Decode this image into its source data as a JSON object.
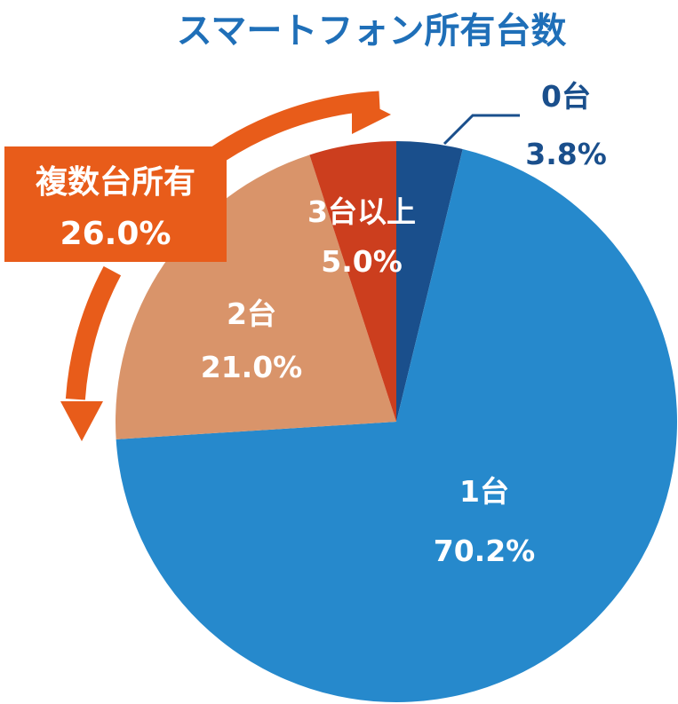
{
  "chart_data": {
    "type": "pie",
    "title": "スマートフォン所有台数",
    "slices": [
      {
        "category": "0台",
        "value": 3.8,
        "value_label": "3.8%",
        "color": "#1a4f8c"
      },
      {
        "category": "1台",
        "value": 70.2,
        "value_label": "70.2%",
        "color": "#2689cc"
      },
      {
        "category": "2台",
        "value": 21.0,
        "value_label": "21.0%",
        "color": "#d9946a"
      },
      {
        "category": "3台以上",
        "value": 5.0,
        "value_label": "5.0%",
        "color": "#cc3e1e"
      }
    ],
    "annotation": {
      "label": "複数台所有",
      "value_label": "26.0%",
      "color": "#e85c1a"
    },
    "colors": {
      "title": "#1f6fb8",
      "outside_label": "#1a4f8c",
      "inside_label": "#ffffff"
    }
  }
}
